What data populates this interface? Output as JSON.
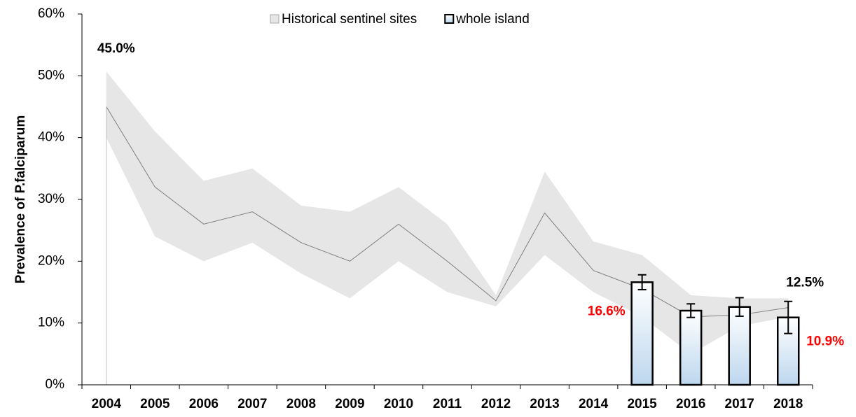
{
  "chart_data": {
    "type": "combo",
    "ylabel": "Prevalence of P.falciparum",
    "categories": [
      "2004",
      "2005",
      "2006",
      "2007",
      "2008",
      "2009",
      "2010",
      "2011",
      "2012",
      "2013",
      "2014",
      "2015",
      "2016",
      "2017",
      "2018"
    ],
    "ylim": [
      0,
      60
    ],
    "yticks": [
      {
        "value": 0,
        "label": "0%"
      },
      {
        "value": 10,
        "label": "10%"
      },
      {
        "value": 20,
        "label": "20%"
      },
      {
        "value": 30,
        "label": "30%"
      },
      {
        "value": 40,
        "label": "40%"
      },
      {
        "value": 50,
        "label": "50%"
      },
      {
        "value": 60,
        "label": "60%"
      }
    ],
    "legend": "top",
    "series": [
      {
        "name": "Historical sentinel sites",
        "type": "line",
        "color": "#e6e6e6",
        "line_color": "#7f7f7f",
        "values": [
          45,
          32,
          26,
          28,
          23,
          20,
          26,
          20,
          13.6,
          27.8,
          18.5,
          15.5,
          11,
          11.3,
          12.5
        ],
        "value_labels": [
          "45.0%",
          null,
          null,
          null,
          null,
          null,
          null,
          null,
          null,
          null,
          null,
          null,
          null,
          null,
          "12.5%"
        ],
        "band_lower": [
          40,
          24,
          20,
          23,
          18,
          14,
          20,
          15,
          12.7,
          21,
          15,
          11,
          5,
          9.5,
          11
        ],
        "band_upper": [
          50.7,
          41,
          33,
          35,
          29,
          28,
          32,
          26,
          14.5,
          34.5,
          23.2,
          21,
          14.5,
          14,
          14
        ]
      },
      {
        "name": "whole island",
        "type": "bar",
        "color": "#bdd7ee",
        "values": [
          0,
          0,
          0,
          0,
          0,
          0,
          0,
          0,
          0,
          0,
          0,
          16.6,
          12,
          12.6,
          10.9
        ],
        "errors": [
          null,
          null,
          null,
          null,
          null,
          null,
          null,
          null,
          null,
          null,
          null,
          1.2,
          1.1,
          1.5,
          2.6
        ],
        "value_labels": [
          null,
          null,
          null,
          null,
          null,
          null,
          null,
          null,
          null,
          null,
          null,
          "16.6%",
          null,
          null,
          "10.9%"
        ]
      }
    ]
  }
}
